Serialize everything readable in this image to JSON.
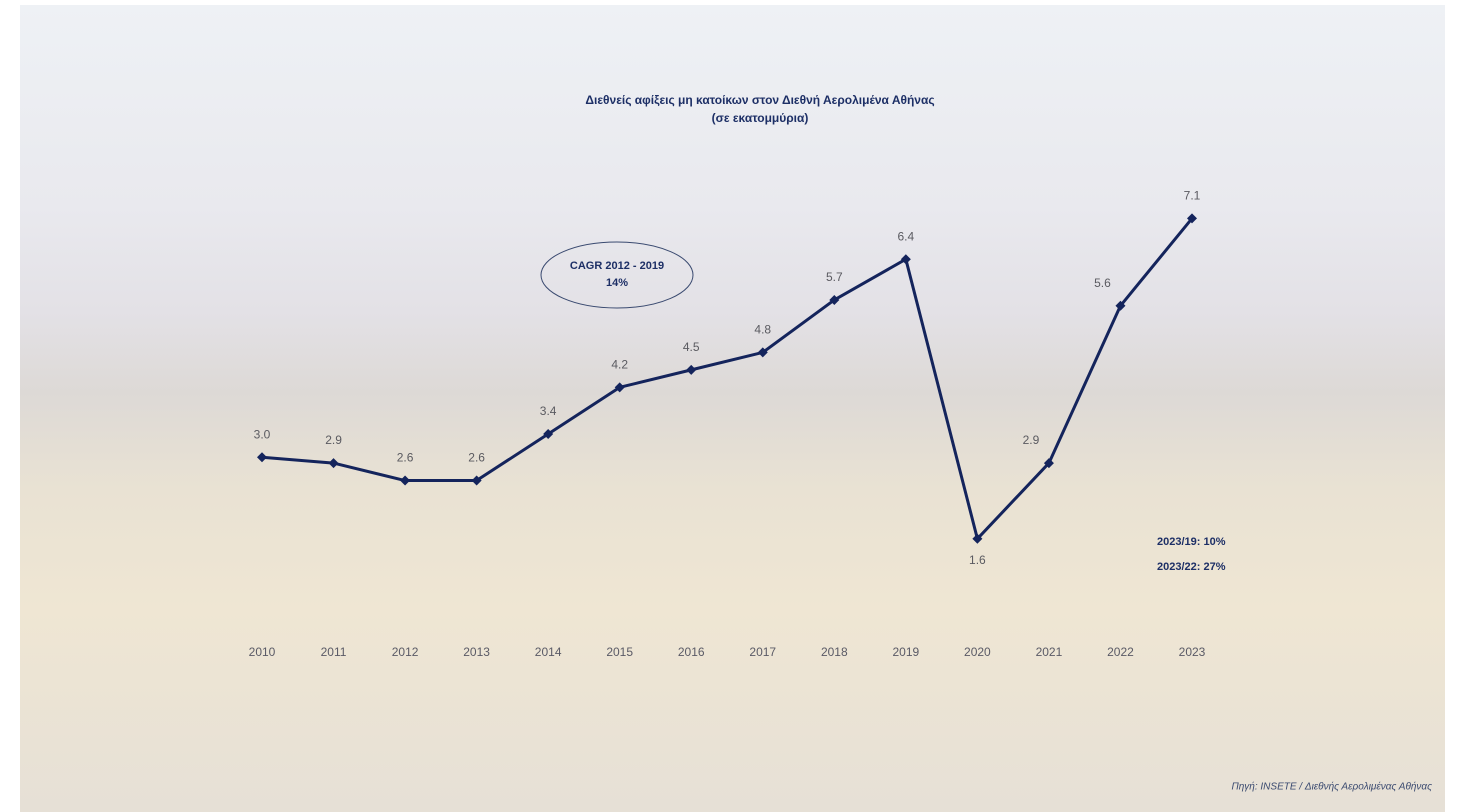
{
  "chart_data": {
    "type": "line",
    "title": "Διεθνείς αφίξεις μη κατοίκων στον Διεθνή Αερολιμένα Αθήνας",
    "subtitle": "(σε εκατομμύρια)",
    "categories": [
      "2010",
      "2011",
      "2012",
      "2013",
      "2014",
      "2015",
      "2016",
      "2017",
      "2018",
      "2019",
      "2020",
      "2021",
      "2022",
      "2023"
    ],
    "values": [
      3.0,
      2.9,
      2.6,
      2.6,
      3.4,
      4.2,
      4.5,
      4.8,
      5.7,
      6.4,
      1.6,
      2.9,
      5.6,
      7.1
    ],
    "value_labels": [
      "3.0",
      "2.9",
      "2.6",
      "2.6",
      "3.4",
      "4.2",
      "4.5",
      "4.8",
      "5.7",
      "6.4",
      "1.6",
      "2.9",
      "5.6",
      "7.1"
    ],
    "color": "#14245c",
    "ylim": [
      0,
      8
    ],
    "annotations": [
      "CAGR 2012 - 2019",
      "14%",
      "2023/19: 10%",
      "2023/22: 27%"
    ],
    "source": "Πηγή: INSETE / Διεθνής Αερολιμένας Αθήνας"
  }
}
